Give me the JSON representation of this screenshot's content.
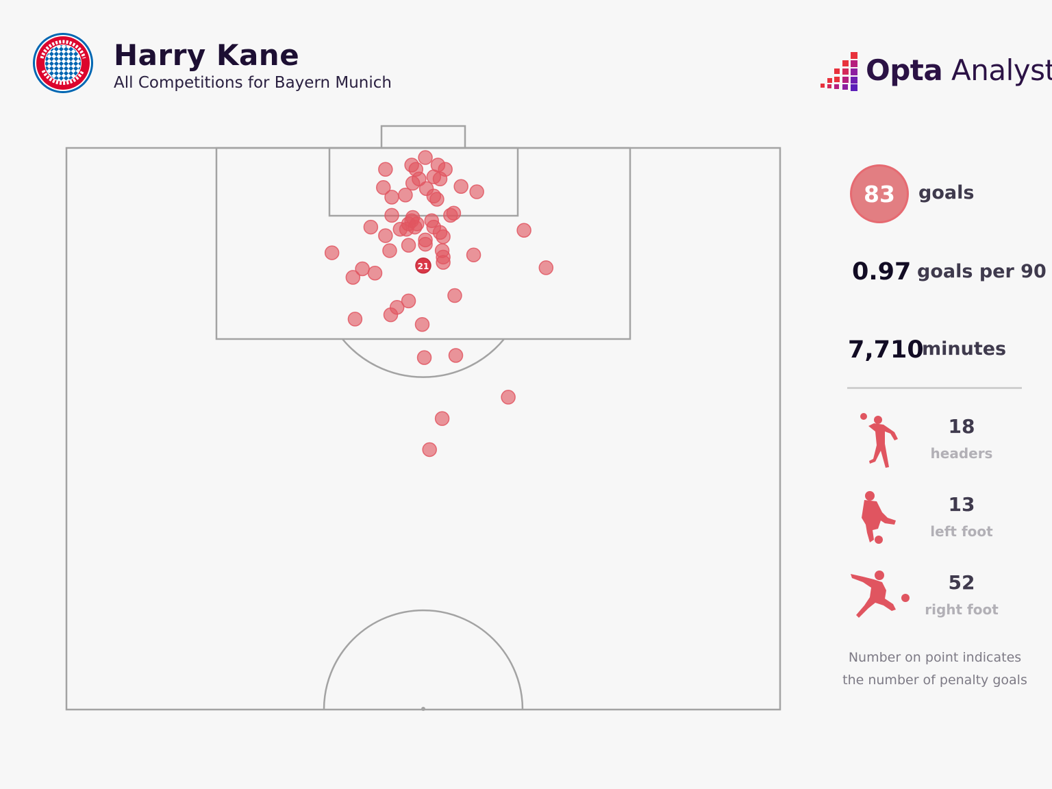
{
  "header": {
    "player_name": "Harry Kane",
    "subtitle": "All Competitions for Bayern Munich",
    "club_badge_icon": "fc-bayern-munchen-badge-icon",
    "brand_logo": "Opta Analyst",
    "brand_bold": "Opta",
    "brand_light": "Analyst"
  },
  "colors": {
    "background": "#f7f7f7",
    "goal_dot": "#e05560",
    "pitch_line": "#a3a3a3",
    "accent": "#e66a71",
    "badge_red": "#dc052d",
    "badge_blue": "#0066b2"
  },
  "stats": {
    "goals_value": "83",
    "goals_label": "goals",
    "per90_value": "0.97",
    "per90_label": "goals per 90",
    "minutes_value": "7,710",
    "minutes_label": "minutes"
  },
  "goal_types": [
    {
      "count": "18",
      "label": "headers",
      "icon": "header-silhouette-icon"
    },
    {
      "count": "13",
      "label": "left foot",
      "icon": "left-foot-silhouette-icon"
    },
    {
      "count": "52",
      "label": "right foot",
      "icon": "right-foot-silhouette-icon"
    }
  ],
  "note": {
    "line1": "Number on point indicates",
    "line2": "the number of penalty goals"
  },
  "chart_data": {
    "type": "scatter",
    "description_units": "pitch coordinates in metres, x = across pitch (0-68, left to right), y = distance from goal line (0-52.5)",
    "penalty_spot": {
      "x": 34,
      "y": 11,
      "label": "21"
    },
    "points": [
      {
        "x": 34.2,
        "y": 0.9
      },
      {
        "x": 30.4,
        "y": 2.0
      },
      {
        "x": 32.9,
        "y": 1.6
      },
      {
        "x": 33.3,
        "y": 2.0
      },
      {
        "x": 35.4,
        "y": 1.6
      },
      {
        "x": 36.1,
        "y": 2.0
      },
      {
        "x": 33.6,
        "y": 2.9
      },
      {
        "x": 35.6,
        "y": 2.9
      },
      {
        "x": 35.0,
        "y": 2.7
      },
      {
        "x": 33.0,
        "y": 3.3
      },
      {
        "x": 30.2,
        "y": 3.7
      },
      {
        "x": 37.6,
        "y": 3.6
      },
      {
        "x": 39.1,
        "y": 4.1
      },
      {
        "x": 34.3,
        "y": 3.8
      },
      {
        "x": 31.0,
        "y": 4.6
      },
      {
        "x": 32.3,
        "y": 4.4
      },
      {
        "x": 35.0,
        "y": 4.5
      },
      {
        "x": 35.3,
        "y": 4.8
      },
      {
        "x": 31.0,
        "y": 6.3
      },
      {
        "x": 33.0,
        "y": 6.5
      },
      {
        "x": 36.6,
        "y": 6.3
      },
      {
        "x": 36.9,
        "y": 6.1
      },
      {
        "x": 32.9,
        "y": 6.8
      },
      {
        "x": 32.6,
        "y": 7.1
      },
      {
        "x": 33.4,
        "y": 7.1
      },
      {
        "x": 34.8,
        "y": 6.8
      },
      {
        "x": 29.0,
        "y": 7.4
      },
      {
        "x": 31.8,
        "y": 7.6
      },
      {
        "x": 32.4,
        "y": 7.6
      },
      {
        "x": 33.2,
        "y": 7.4
      },
      {
        "x": 35.0,
        "y": 7.4
      },
      {
        "x": 35.6,
        "y": 7.9
      },
      {
        "x": 35.9,
        "y": 8.3
      },
      {
        "x": 30.4,
        "y": 8.2
      },
      {
        "x": 43.6,
        "y": 7.7
      },
      {
        "x": 34.2,
        "y": 8.6
      },
      {
        "x": 34.2,
        "y": 9.0
      },
      {
        "x": 32.6,
        "y": 9.1
      },
      {
        "x": 30.8,
        "y": 9.6
      },
      {
        "x": 35.8,
        "y": 9.6
      },
      {
        "x": 35.9,
        "y": 10.2
      },
      {
        "x": 35.9,
        "y": 10.7
      },
      {
        "x": 38.8,
        "y": 10.0
      },
      {
        "x": 25.3,
        "y": 9.8
      },
      {
        "x": 28.2,
        "y": 11.3
      },
      {
        "x": 29.4,
        "y": 11.7
      },
      {
        "x": 27.3,
        "y": 12.1
      },
      {
        "x": 45.7,
        "y": 11.2
      },
      {
        "x": 37.0,
        "y": 13.8
      },
      {
        "x": 32.6,
        "y": 14.3
      },
      {
        "x": 31.5,
        "y": 14.9
      },
      {
        "x": 30.9,
        "y": 15.6
      },
      {
        "x": 27.5,
        "y": 16.0
      },
      {
        "x": 33.9,
        "y": 16.5
      },
      {
        "x": 34.1,
        "y": 19.6
      },
      {
        "x": 37.1,
        "y": 19.4
      },
      {
        "x": 42.1,
        "y": 23.3
      },
      {
        "x": 35.8,
        "y": 25.3
      },
      {
        "x": 34.6,
        "y": 28.2
      }
    ]
  }
}
